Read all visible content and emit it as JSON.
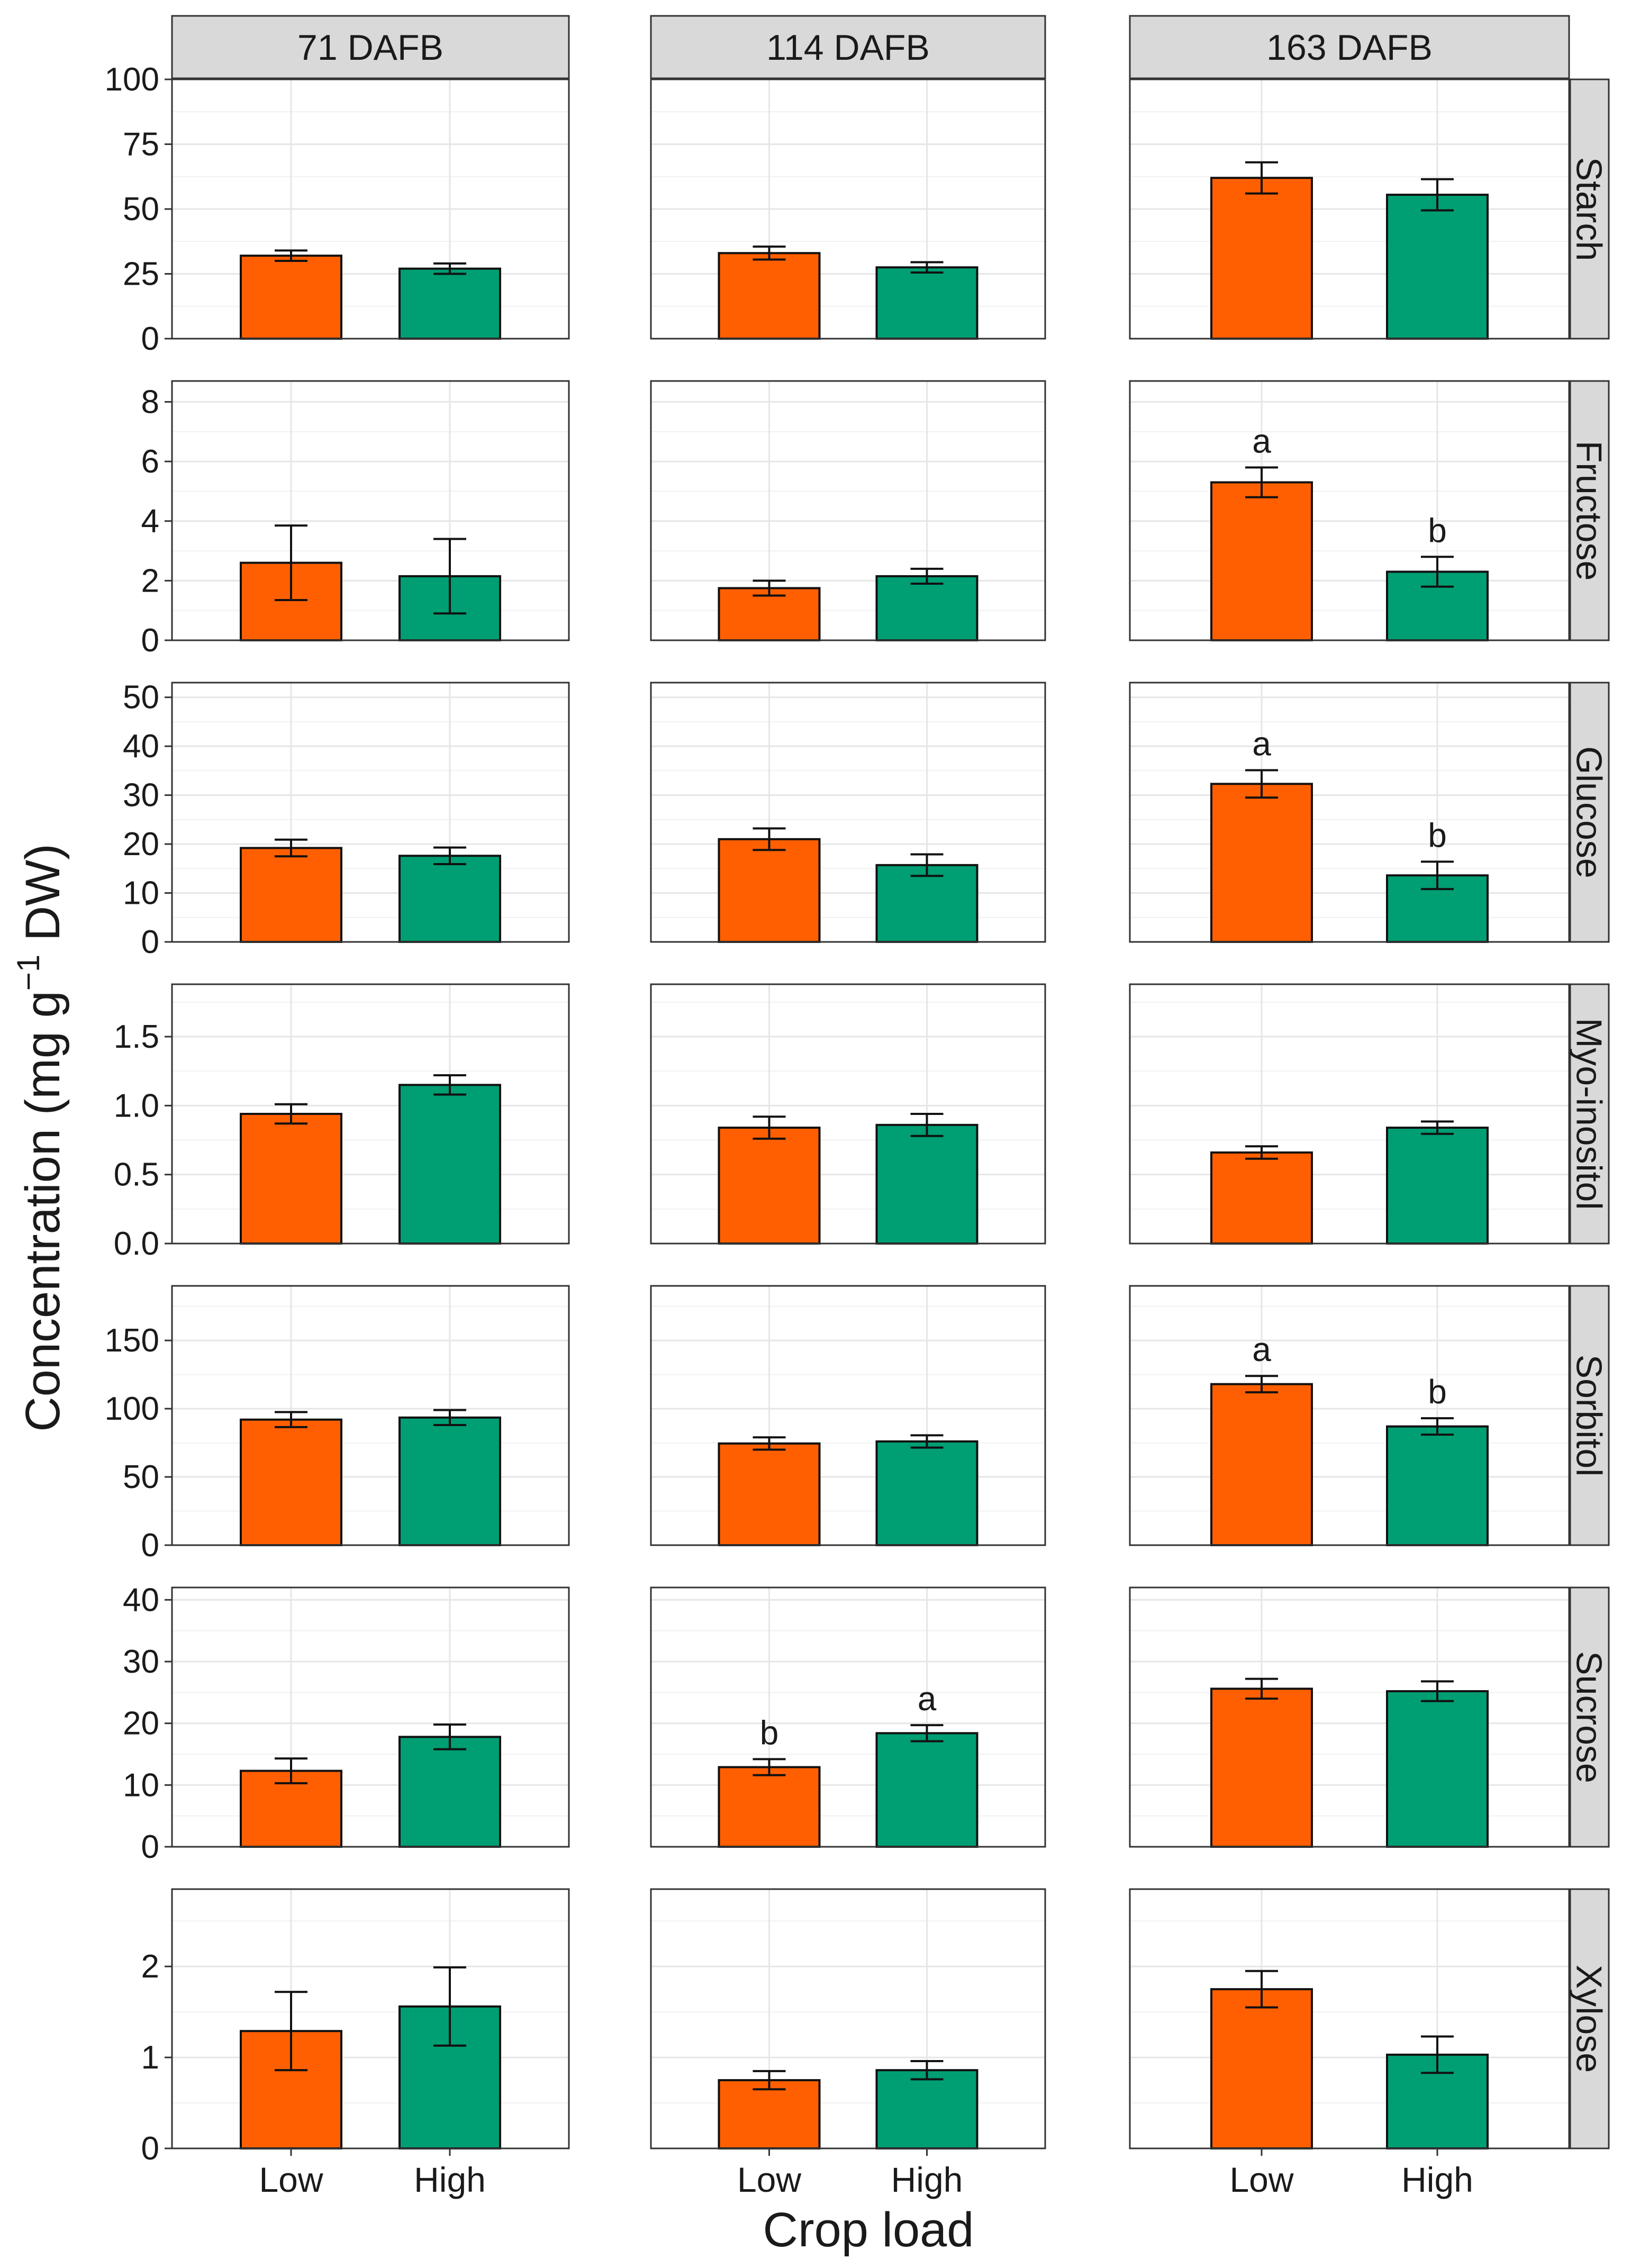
{
  "chart_data": {
    "type": "bar",
    "facet_columns": [
      "71 DAFB",
      "114 DAFB",
      "163 DAFB"
    ],
    "facet_rows": [
      "Starch",
      "Fructose",
      "Glucose",
      "Myo-inositol",
      "Sorbitol",
      "Sucrose",
      "Xylose"
    ],
    "categories": [
      "Low",
      "High"
    ],
    "xlabel": "Crop load",
    "ylabel_prefix": "Concentration (mg  g",
    "ylabel_sup": "−1",
    "ylabel_suffix": " DW)",
    "colors": {
      "Low": "#FF5F00",
      "High": "#009E73"
    },
    "rows": [
      {
        "name": "Starch",
        "ylim": [
          0,
          100
        ],
        "yticks": [
          0,
          25,
          50,
          75,
          100
        ],
        "panels": [
          {
            "values": [
              32,
              27
            ],
            "errors": [
              2,
              2
            ],
            "letters": [
              "",
              ""
            ]
          },
          {
            "values": [
              33,
              27.5
            ],
            "errors": [
              2.5,
              2
            ],
            "letters": [
              "",
              ""
            ]
          },
          {
            "values": [
              62,
              55.5
            ],
            "errors": [
              6,
              6
            ],
            "letters": [
              "",
              ""
            ]
          }
        ]
      },
      {
        "name": "Fructose",
        "ylim": [
          0,
          8.7
        ],
        "yticks": [
          0,
          2,
          4,
          6,
          8
        ],
        "panels": [
          {
            "values": [
              2.6,
              2.15
            ],
            "errors": [
              1.25,
              1.25
            ],
            "letters": [
              "",
              ""
            ]
          },
          {
            "values": [
              1.75,
              2.15
            ],
            "errors": [
              0.25,
              0.25
            ],
            "letters": [
              "",
              ""
            ]
          },
          {
            "values": [
              5.3,
              2.3
            ],
            "errors": [
              0.5,
              0.5
            ],
            "letters": [
              "a",
              "b"
            ]
          }
        ]
      },
      {
        "name": "Glucose",
        "ylim": [
          0,
          53
        ],
        "yticks": [
          0,
          10,
          20,
          30,
          40,
          50
        ],
        "panels": [
          {
            "values": [
              19.2,
              17.6
            ],
            "errors": [
              1.7,
              1.7
            ],
            "letters": [
              "",
              ""
            ]
          },
          {
            "values": [
              21,
              15.7
            ],
            "errors": [
              2.2,
              2.2
            ],
            "letters": [
              "",
              ""
            ]
          },
          {
            "values": [
              32.3,
              13.6
            ],
            "errors": [
              2.8,
              2.8
            ],
            "letters": [
              "a",
              "b"
            ]
          }
        ]
      },
      {
        "name": "Myo-inositol",
        "ylim": [
          0,
          1.88
        ],
        "yticks": [
          0.0,
          0.5,
          1.0,
          1.5
        ],
        "tick_labels": [
          "0.0",
          "0.5",
          "1.0",
          "1.5"
        ],
        "panels": [
          {
            "values": [
              0.94,
              1.15
            ],
            "errors": [
              0.07,
              0.07
            ],
            "letters": [
              "",
              ""
            ]
          },
          {
            "values": [
              0.84,
              0.86
            ],
            "errors": [
              0.08,
              0.08
            ],
            "letters": [
              "",
              ""
            ]
          },
          {
            "values": [
              0.66,
              0.84
            ],
            "errors": [
              0.045,
              0.045
            ],
            "letters": [
              "",
              ""
            ]
          }
        ]
      },
      {
        "name": "Sorbitol",
        "ylim": [
          0,
          190
        ],
        "yticks": [
          0,
          50,
          100,
          150
        ],
        "panels": [
          {
            "values": [
              92,
              93.5
            ],
            "errors": [
              5.5,
              5.5
            ],
            "letters": [
              "",
              ""
            ]
          },
          {
            "values": [
              74.5,
              76
            ],
            "errors": [
              4.5,
              4.5
            ],
            "letters": [
              "",
              ""
            ]
          },
          {
            "values": [
              118,
              87
            ],
            "errors": [
              6,
              6
            ],
            "letters": [
              "a",
              "b"
            ]
          }
        ]
      },
      {
        "name": "Sucrose",
        "ylim": [
          0,
          42
        ],
        "yticks": [
          0,
          10,
          20,
          30,
          40
        ],
        "panels": [
          {
            "values": [
              12.3,
              17.8
            ],
            "errors": [
              2,
              2
            ],
            "letters": [
              "",
              ""
            ]
          },
          {
            "values": [
              12.9,
              18.4
            ],
            "errors": [
              1.3,
              1.3
            ],
            "letters": [
              "b",
              "a"
            ]
          },
          {
            "values": [
              25.6,
              25.2
            ],
            "errors": [
              1.6,
              1.6
            ],
            "letters": [
              "",
              ""
            ]
          }
        ]
      },
      {
        "name": "Xylose",
        "ylim": [
          0,
          2.85
        ],
        "yticks": [
          0,
          1,
          2
        ],
        "panels": [
          {
            "values": [
              1.29,
              1.56
            ],
            "errors": [
              0.43,
              0.43
            ],
            "letters": [
              "",
              ""
            ]
          },
          {
            "values": [
              0.75,
              0.86
            ],
            "errors": [
              0.1,
              0.1
            ],
            "letters": [
              "",
              ""
            ]
          },
          {
            "values": [
              1.75,
              1.03
            ],
            "errors": [
              0.2,
              0.2
            ],
            "letters": [
              "",
              ""
            ]
          }
        ]
      }
    ]
  }
}
